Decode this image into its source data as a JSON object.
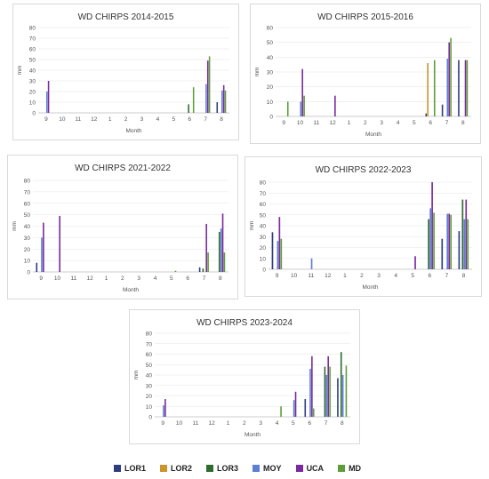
{
  "legend": [
    {
      "name": "LOR1",
      "color": "#2F3C7E"
    },
    {
      "name": "LOR2",
      "color": "#C9952C"
    },
    {
      "name": "LOR3",
      "color": "#2E6B2E"
    },
    {
      "name": "MOY",
      "color": "#5B7FD6"
    },
    {
      "name": "UCA",
      "color": "#7A2A9C"
    },
    {
      "name": "MD",
      "color": "#5E9E3A"
    }
  ],
  "chart_data": [
    {
      "type": "bar",
      "title": "WD CHIRPS 2014-2015",
      "xlabel": "Month",
      "ylabel": "mm",
      "ylim": [
        0,
        80
      ],
      "yticks": [
        0,
        10,
        20,
        30,
        40,
        50,
        60,
        70,
        80
      ],
      "categories": [
        "9",
        "10",
        "11",
        "12",
        "1",
        "2",
        "3",
        "4",
        "5",
        "6",
        "7",
        "8"
      ],
      "series": [
        {
          "name": "LOR1",
          "values": [
            0,
            0,
            0,
            0,
            0,
            0,
            0,
            0,
            0,
            0,
            0,
            10
          ]
        },
        {
          "name": "LOR2",
          "values": [
            0,
            0,
            0,
            0,
            0,
            0,
            0,
            0,
            0,
            0,
            0,
            0
          ]
        },
        {
          "name": "LOR3",
          "values": [
            0,
            0,
            0,
            0,
            0,
            0,
            0,
            0,
            0,
            8,
            0,
            0
          ]
        },
        {
          "name": "MOY",
          "values": [
            20,
            0,
            0,
            0,
            0,
            0,
            0,
            0,
            0,
            0,
            27,
            21
          ]
        },
        {
          "name": "UCA",
          "values": [
            30,
            0,
            0,
            0,
            0,
            0,
            0,
            0,
            0,
            0,
            49,
            26
          ]
        },
        {
          "name": "MD",
          "values": [
            0,
            0,
            0,
            0,
            0,
            0,
            0,
            0,
            0,
            24,
            53,
            21
          ]
        }
      ]
    },
    {
      "type": "bar",
      "title": "WD CHIRPS 2015-2016",
      "xlabel": "Month",
      "ylabel": "mm",
      "ylim": [
        0,
        60
      ],
      "yticks": [
        0,
        10,
        20,
        30,
        40,
        50,
        60
      ],
      "categories": [
        "9",
        "10",
        "11",
        "12",
        "1",
        "2",
        "3",
        "4",
        "5",
        "6",
        "7",
        "8"
      ],
      "series": [
        {
          "name": "LOR1",
          "values": [
            0,
            0,
            0,
            0,
            0,
            0,
            0,
            0,
            0,
            2,
            8,
            38
          ]
        },
        {
          "name": "LOR2",
          "values": [
            0,
            0,
            0,
            0,
            0,
            0,
            0,
            0,
            0,
            36,
            0,
            0
          ]
        },
        {
          "name": "LOR3",
          "values": [
            0,
            0,
            0,
            0,
            0,
            0,
            0,
            0,
            0,
            0,
            0,
            0
          ]
        },
        {
          "name": "MOY",
          "values": [
            0,
            10,
            0,
            0,
            0,
            0,
            0,
            0,
            0,
            0,
            39,
            0
          ]
        },
        {
          "name": "UCA",
          "values": [
            0,
            32,
            0,
            14,
            0,
            0,
            0,
            0,
            0,
            0,
            50,
            38
          ]
        },
        {
          "name": "MD",
          "values": [
            10,
            14,
            0,
            0,
            0,
            0,
            0,
            0,
            0,
            38,
            53,
            38
          ]
        }
      ]
    },
    {
      "type": "bar",
      "title": "WD CHIRPS 2021-2022",
      "xlabel": "Month",
      "ylabel": "mm",
      "ylim": [
        0,
        80
      ],
      "yticks": [
        0,
        10,
        20,
        30,
        40,
        50,
        60,
        70,
        80
      ],
      "categories": [
        "9",
        "10",
        "11",
        "12",
        "1",
        "2",
        "3",
        "4",
        "5",
        "6",
        "7",
        "8"
      ],
      "series": [
        {
          "name": "LOR1",
          "values": [
            8,
            0,
            0,
            0,
            0,
            0,
            0,
            0,
            0,
            0,
            4,
            0
          ]
        },
        {
          "name": "LOR2",
          "values": [
            0,
            0,
            0,
            0,
            0,
            0,
            0,
            0,
            0,
            0,
            0,
            0
          ]
        },
        {
          "name": "LOR3",
          "values": [
            0,
            0,
            0,
            0,
            0,
            0,
            0,
            0,
            0,
            0,
            3,
            35
          ]
        },
        {
          "name": "MOY",
          "values": [
            30,
            0,
            0,
            0,
            0,
            0,
            0,
            0,
            0,
            0,
            0,
            38
          ]
        },
        {
          "name": "UCA",
          "values": [
            43,
            49,
            0,
            0,
            0,
            0,
            0,
            0,
            0,
            0,
            42,
            51
          ]
        },
        {
          "name": "MD",
          "values": [
            0,
            0,
            0,
            0,
            0,
            0,
            0,
            0,
            1,
            0,
            17,
            17
          ]
        }
      ]
    },
    {
      "type": "bar",
      "title": "WD CHIRPS 2022-2023",
      "xlabel": "Month",
      "ylabel": "mm",
      "ylim": [
        0,
        80
      ],
      "yticks": [
        0,
        10,
        20,
        30,
        40,
        50,
        60,
        70,
        80
      ],
      "categories": [
        "9",
        "10",
        "11",
        "12",
        "1",
        "2",
        "3",
        "4",
        "5",
        "6",
        "7",
        "8"
      ],
      "series": [
        {
          "name": "LOR1",
          "values": [
            34,
            0,
            0,
            0,
            0,
            0,
            0,
            0,
            0,
            0,
            28,
            35
          ]
        },
        {
          "name": "LOR2",
          "values": [
            0,
            0,
            0,
            0,
            0,
            0,
            0,
            0,
            0,
            0,
            0,
            0
          ]
        },
        {
          "name": "LOR3",
          "values": [
            0,
            0,
            0,
            0,
            0,
            0,
            0,
            0,
            0,
            46,
            0,
            64
          ]
        },
        {
          "name": "MOY",
          "values": [
            26,
            0,
            10,
            0,
            0,
            0,
            0,
            0,
            0,
            56,
            51,
            46
          ]
        },
        {
          "name": "UCA",
          "values": [
            48,
            0,
            0,
            0,
            0,
            0,
            0,
            0,
            12,
            80,
            51,
            64
          ]
        },
        {
          "name": "MD",
          "values": [
            28,
            0,
            0,
            0,
            0,
            0,
            0,
            0,
            0,
            52,
            50,
            46
          ]
        }
      ]
    },
    {
      "type": "bar",
      "title": "WD CHIRPS 2023-2024",
      "xlabel": "Month",
      "ylabel": "mm",
      "ylim": [
        0,
        80
      ],
      "yticks": [
        0,
        10,
        20,
        30,
        40,
        50,
        60,
        70,
        80
      ],
      "categories": [
        "9",
        "10",
        "11",
        "12",
        "1",
        "2",
        "3",
        "4",
        "5",
        "6",
        "7",
        "8"
      ],
      "series": [
        {
          "name": "LOR1",
          "values": [
            0,
            0,
            0,
            0,
            0,
            0,
            0,
            0,
            0,
            17,
            0,
            37
          ]
        },
        {
          "name": "LOR2",
          "values": [
            0,
            0,
            0,
            0,
            0,
            0,
            0,
            0,
            0,
            0,
            0,
            0
          ]
        },
        {
          "name": "LOR3",
          "values": [
            0,
            0,
            0,
            0,
            0,
            0,
            0,
            0,
            0,
            0,
            48,
            62
          ]
        },
        {
          "name": "MOY",
          "values": [
            11,
            0,
            0,
            0,
            0,
            0,
            0,
            0,
            16,
            46,
            40,
            40
          ]
        },
        {
          "name": "UCA",
          "values": [
            17,
            0,
            0,
            0,
            0,
            0,
            0,
            0,
            24,
            58,
            58,
            0
          ]
        },
        {
          "name": "MD",
          "values": [
            0,
            0,
            0,
            0,
            0,
            0,
            0,
            10,
            0,
            8,
            48,
            49
          ]
        }
      ]
    }
  ]
}
